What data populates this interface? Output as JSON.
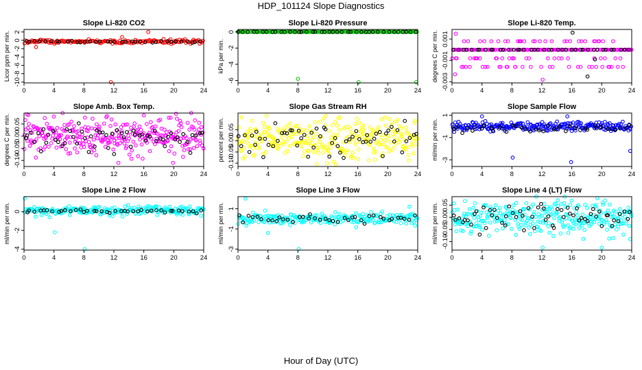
{
  "figure": {
    "title": "HDP_101124  Slope Diagnostics",
    "xlabel": "Hour of Day (UTC)"
  },
  "chart_data": [
    {
      "type": "scatter",
      "title": "Slope Li-820 CO2",
      "ylabel": "Licor ppm per min.",
      "color": "#ff0000",
      "xlim": [
        0,
        24
      ],
      "ylim": [
        -10.2,
        2.6
      ],
      "yticks": [
        2,
        0,
        -2,
        -4,
        -6,
        -8,
        -10
      ],
      "xticks": [
        0,
        4,
        8,
        12,
        16,
        20,
        24
      ],
      "series": [
        {
          "name": "all",
          "color": "#ff0000",
          "count": 170,
          "center": -0.3,
          "spread": 0.25,
          "outliers": [
            [
              11.6,
              -10
            ],
            [
              16.6,
              2
            ],
            [
              1.6,
              -1.6
            ],
            [
              13.1,
              0.8
            ]
          ]
        },
        {
          "name": "hourly",
          "color": "#000000",
          "count": 36,
          "center": -0.3,
          "spread": 0.1,
          "outliers": []
        }
      ]
    },
    {
      "type": "scatter",
      "title": "Slope Li-820 Pressure",
      "ylabel": "kPa per min.",
      "color": "#00cc00",
      "xlim": [
        0,
        24
      ],
      "ylim": [
        -6.3,
        0.3
      ],
      "yticks": [
        0,
        -2,
        -4,
        -6
      ],
      "xticks": [
        0,
        4,
        8,
        12,
        16,
        20,
        24
      ],
      "series": [
        {
          "name": "all",
          "color": "#00cc00",
          "count": 190,
          "center": 0,
          "spread": 0.01,
          "outliers": [
            [
              8.0,
              -5.8
            ],
            [
              16.1,
              -6.2
            ],
            [
              23.8,
              -6.2
            ]
          ]
        },
        {
          "name": "hourly",
          "color": "#000000",
          "count": 40,
          "center": 0,
          "spread": 0.005,
          "outliers": []
        }
      ]
    },
    {
      "type": "scatter",
      "title": "Slope Li-820 Temp.",
      "ylabel": "degrees C per min.",
      "color": "#ff00ff",
      "xlim": [
        0,
        24
      ],
      "ylim": [
        -0.0031,
        0.0019
      ],
      "yticks": [
        0.001,
        -0.001,
        -0.003
      ],
      "xticks": [
        0,
        4,
        8,
        12,
        16,
        20,
        24
      ],
      "series": [
        {
          "name": "all",
          "color": "#ff00ff",
          "count": 230,
          "levels": [
            0.0008,
            0,
            -0.0008,
            -0.0016
          ],
          "outliers": [
            [
              0.5,
              0.0015
            ],
            [
              12.1,
              -0.0028
            ],
            [
              0.4,
              -0.0023
            ]
          ]
        },
        {
          "name": "hourly",
          "color": "#000000",
          "count": 40,
          "levels": [
            0
          ],
          "outliers": [
            [
              16.1,
              0.0016
            ],
            [
              18.1,
              -0.0025
            ],
            [
              19.1,
              -0.0009
            ]
          ]
        }
      ]
    },
    {
      "type": "scatter",
      "title": "Slope Amb. Box Temp.",
      "ylabel": "degrees C per min.",
      "color": "#ff00ff",
      "xlim": [
        0,
        24
      ],
      "ylim": [
        -0.125,
        0.095
      ],
      "yticks": [
        0.05,
        0.0,
        -0.05,
        -0.1
      ],
      "ytick_labels": [
        "0.05",
        "0.00",
        "-0.05",
        "-0.10"
      ],
      "xticks": [
        0,
        4,
        8,
        12,
        16,
        20,
        24
      ],
      "series": [
        {
          "name": "all",
          "color": "#ff00ff",
          "count": 300,
          "center": 0.0,
          "spread": 0.035,
          "outliers": [
            [
              0.4,
              0.09
            ],
            [
              12.6,
              -0.11
            ],
            [
              19.9,
              -0.11
            ]
          ]
        },
        {
          "name": "hourly",
          "color": "#000000",
          "count": 60,
          "center": 0.0,
          "spread": 0.03,
          "outliers": []
        }
      ]
    },
    {
      "type": "scatter",
      "title": "Slope Gas Stream RH",
      "ylabel": "percent per min.",
      "color": "#ffff00",
      "xlim": [
        0,
        24
      ],
      "ylim": [
        -0.115,
        0.125
      ],
      "yticks": [
        0.05,
        0.0,
        -0.05,
        -0.1
      ],
      "ytick_labels": [
        "0.05",
        "0.00",
        "-0.05",
        "-0.10"
      ],
      "xticks": [
        0,
        4,
        8,
        12,
        16,
        20,
        24
      ],
      "series": [
        {
          "name": "all",
          "color": "#ffff00",
          "count": 300,
          "center": 0.01,
          "spread": 0.045,
          "outliers": []
        },
        {
          "name": "hourly",
          "color": "#000000",
          "count": 60,
          "center": 0.01,
          "spread": 0.04,
          "outliers": []
        }
      ]
    },
    {
      "type": "scatter",
      "title": "Slope Sample Flow",
      "ylabel": "ml/min per min.",
      "color": "#0000ff",
      "xlim": [
        0,
        24
      ],
      "ylim": [
        -3.6,
        1.2
      ],
      "yticks": [
        1,
        -1,
        -3
      ],
      "xticks": [
        0,
        4,
        8,
        12,
        16,
        20,
        24
      ],
      "series": [
        {
          "name": "all",
          "color": "#0000ff",
          "count": 250,
          "center": 0.0,
          "spread": 0.2,
          "outliers": [
            [
              8.1,
              -2.8
            ],
            [
              15.9,
              -3.2
            ],
            [
              23.8,
              -2.2
            ],
            [
              4.0,
              0.9
            ],
            [
              15.4,
              0.9
            ]
          ]
        },
        {
          "name": "hourly",
          "color": "#000000",
          "count": 40,
          "center": -0.2,
          "spread": 0.15,
          "outliers": []
        }
      ]
    },
    {
      "type": "scatter",
      "title": "Slope Line 2 Flow",
      "ylabel": "ml/min per min.",
      "color": "#00ffff",
      "xlim": [
        0,
        24
      ],
      "ylim": [
        -4.1,
        1.6
      ],
      "yticks": [
        0,
        -2,
        -4
      ],
      "xticks": [
        0,
        4,
        8,
        12,
        16,
        20,
        24
      ],
      "series": [
        {
          "name": "all",
          "color": "#00ffff",
          "count": 230,
          "center": 0.1,
          "spread": 0.25,
          "outliers": [
            [
              0.1,
              1.4
            ],
            [
              4.1,
              -2.2
            ],
            [
              8.1,
              -4.0
            ]
          ]
        },
        {
          "name": "hourly",
          "color": "#000000",
          "count": 40,
          "center": 0.05,
          "spread": 0.1,
          "outliers": []
        }
      ]
    },
    {
      "type": "scatter",
      "title": "Slope Line 3 Flow",
      "ylabel": "ml/min per min.",
      "color": "#00ffff",
      "xlim": [
        0,
        24
      ],
      "ylim": [
        -3.1,
        2.2
      ],
      "yticks": [
        1,
        -1,
        -3
      ],
      "xticks": [
        0,
        4,
        8,
        12,
        16,
        20,
        24
      ],
      "series": [
        {
          "name": "all",
          "color": "#00ffff",
          "count": 230,
          "center": 0.0,
          "spread": 0.3,
          "outliers": [
            [
              1.0,
              2.0
            ],
            [
              4.0,
              -1.4
            ],
            [
              8.1,
              -3.0
            ],
            [
              22.9,
              1.2
            ]
          ]
        },
        {
          "name": "hourly",
          "color": "#000000",
          "count": 40,
          "center": 0.0,
          "spread": 0.2,
          "outliers": []
        }
      ]
    },
    {
      "type": "scatter",
      "title": "Slope Line 4 (LT) Flow",
      "ylabel": "ml/min per min.",
      "color": "#00ffff",
      "xlim": [
        0,
        24
      ],
      "ylim": [
        -0.135,
        0.085
      ],
      "yticks": [
        0.05,
        0.0,
        -0.05,
        -0.1
      ],
      "ytick_labels": [
        "0.05",
        "0.00",
        "-0.05",
        "-0.10"
      ],
      "xticks": [
        0,
        4,
        8,
        12,
        16,
        20,
        24
      ],
      "series": [
        {
          "name": "all",
          "color": "#00ffff",
          "count": 300,
          "center": 0.0,
          "spread": 0.035,
          "outliers": [
            [
              12.1,
              -0.125
            ],
            [
              20.0,
              -0.125
            ],
            [
              23.8,
              -0.09
            ]
          ]
        },
        {
          "name": "hourly",
          "color": "#000000",
          "count": 60,
          "center": 0.0,
          "spread": 0.025,
          "outliers": []
        }
      ]
    }
  ]
}
